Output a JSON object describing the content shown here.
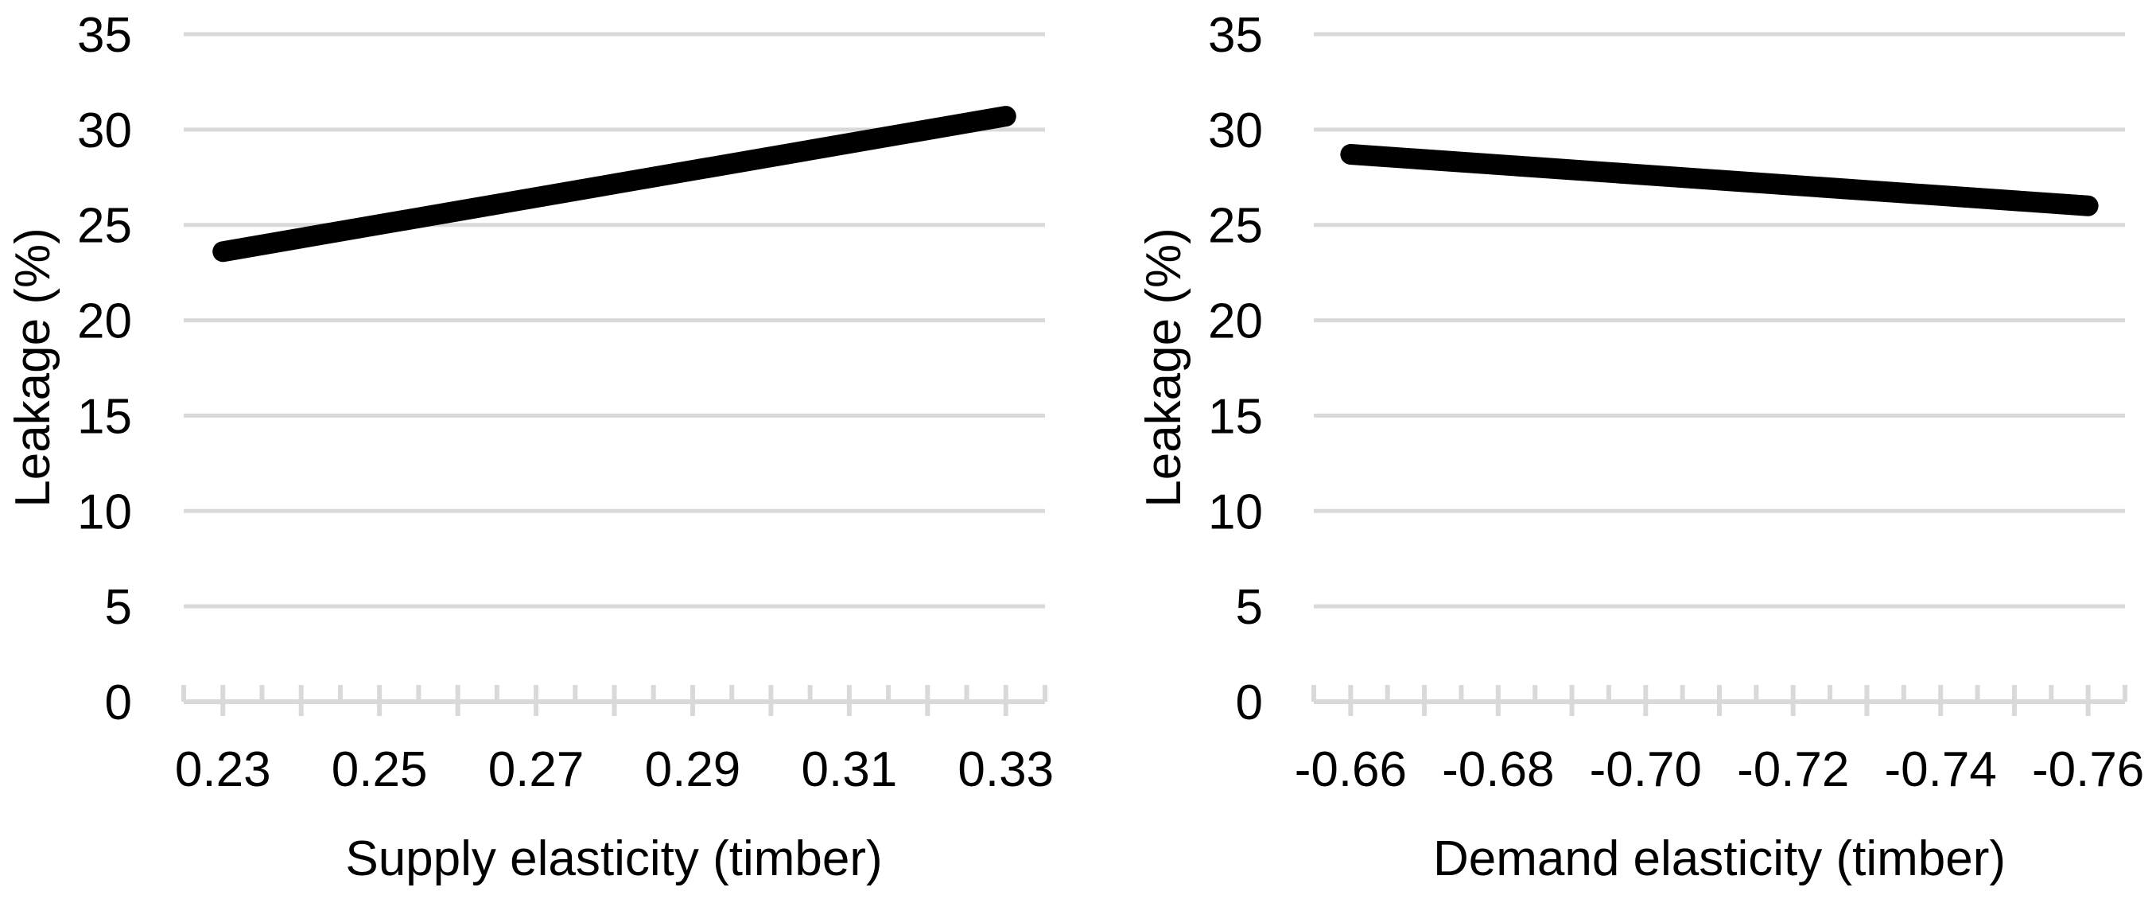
{
  "styles": {
    "background": "#ffffff",
    "grid_color": "#d9d9d9",
    "line_color": "#000000",
    "text_color": "#000000"
  },
  "chart_data": [
    {
      "type": "line",
      "panel": "left",
      "xlabel": "Supply elasticity (timber)",
      "ylabel": "Leakage (%)",
      "xlim": [
        0.225,
        0.335
      ],
      "ylim": [
        0,
        35
      ],
      "y_ticks": [
        0,
        5,
        10,
        15,
        20,
        25,
        30,
        35
      ],
      "x_tick_labels": [
        "0.23",
        "0.25",
        "0.27",
        "0.29",
        "0.31",
        "0.33"
      ],
      "x_tick_values": [
        0.23,
        0.25,
        0.27,
        0.29,
        0.31,
        0.33
      ],
      "x_major_interval": 0.01,
      "x_minor_interval": 0.005,
      "grid": true,
      "legend": "none",
      "series": [
        {
          "name": "Leakage",
          "x": [
            0.23,
            0.33
          ],
          "y": [
            23.6,
            30.7
          ]
        }
      ]
    },
    {
      "type": "line",
      "panel": "right",
      "xlabel": "Demand elasticity (timber)",
      "ylabel": "Leakage (%)",
      "xlim": [
        -0.655,
        -0.765
      ],
      "ylim": [
        0,
        35
      ],
      "y_ticks": [
        0,
        5,
        10,
        15,
        20,
        25,
        30,
        35
      ],
      "x_tick_labels": [
        "-0.66",
        "-0.68",
        "-0.70",
        "-0.72",
        "-0.74",
        "-0.76"
      ],
      "x_tick_values": [
        -0.66,
        -0.68,
        -0.7,
        -0.72,
        -0.74,
        -0.76
      ],
      "x_major_interval": 0.01,
      "x_minor_interval": 0.005,
      "grid": true,
      "legend": "none",
      "series": [
        {
          "name": "Leakage",
          "x": [
            -0.66,
            -0.76
          ],
          "y": [
            28.7,
            26.0
          ]
        }
      ]
    }
  ]
}
